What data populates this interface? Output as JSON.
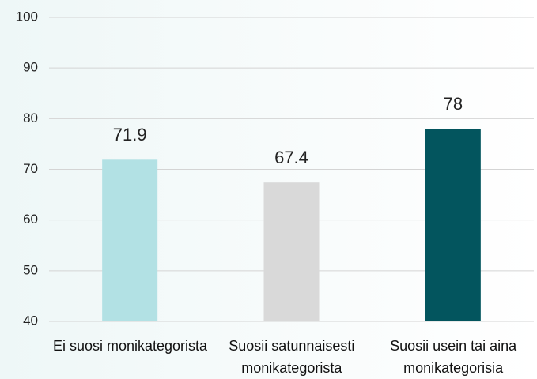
{
  "chart_data": {
    "type": "bar",
    "categories": [
      "Ei suosi monikategorista",
      "Suosii satunnaisesti monikategorista",
      "Suosii usein tai aina monikategorisia"
    ],
    "values": [
      71.9,
      67.4,
      78
    ],
    "colors": [
      "#b2e1e4",
      "#d9d9d9",
      "#03555e"
    ],
    "ylim": [
      40,
      100
    ],
    "yticks": [
      40,
      50,
      60,
      70,
      80,
      90,
      100
    ],
    "grid": true
  }
}
